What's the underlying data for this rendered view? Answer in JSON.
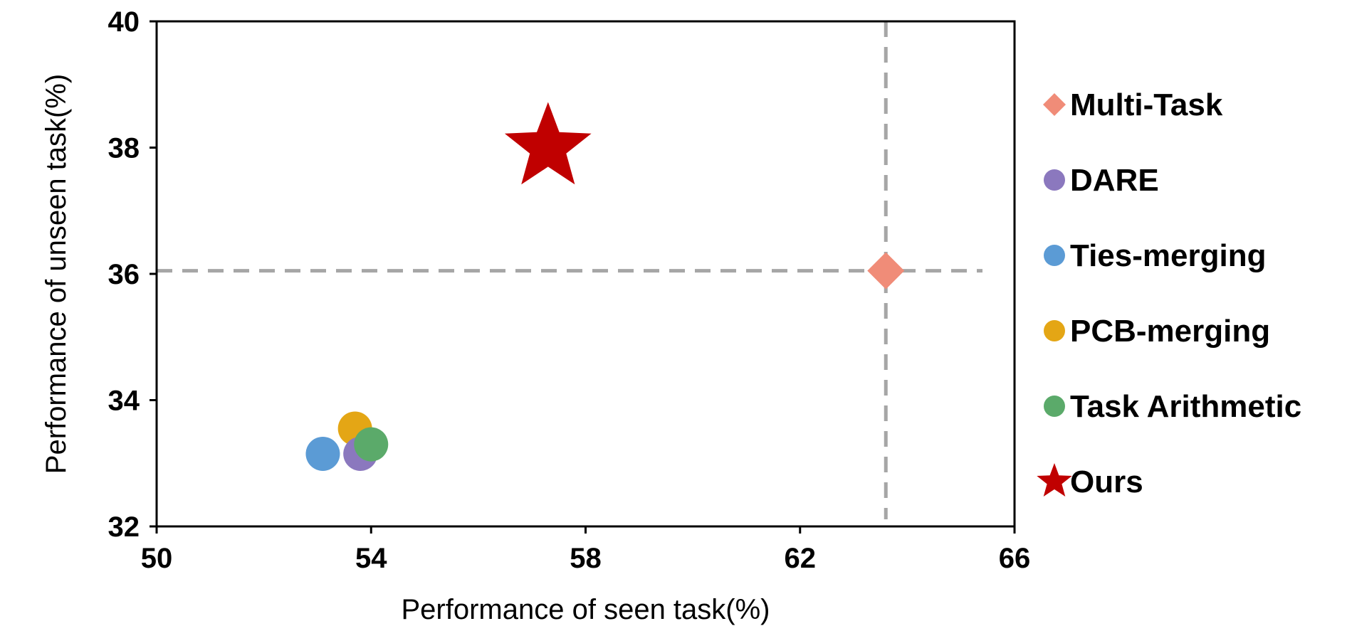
{
  "chart_data": {
    "type": "scatter",
    "title": "",
    "xlabel": "Performance of seen task(%)",
    "ylabel": "Performance of unseen task(%)",
    "xlim": [
      50,
      66
    ],
    "ylim": [
      32,
      40
    ],
    "xticks": [
      50,
      54,
      58,
      62,
      66
    ],
    "yticks": [
      32,
      34,
      36,
      38,
      40
    ],
    "grid": false,
    "legend_position": "right",
    "reference_lines": [
      {
        "orientation": "horizontal",
        "value": 36.05,
        "style": "dashed",
        "color": "#A6A6A6"
      },
      {
        "orientation": "vertical",
        "value": 63.6,
        "style": "dashed",
        "color": "#A6A6A6"
      }
    ],
    "series": [
      {
        "name": "Multi-Task",
        "marker": "diamond",
        "color": "#F08C78",
        "x": 63.6,
        "y": 36.05
      },
      {
        "name": "DARE",
        "marker": "circle",
        "color": "#8B78BE",
        "x": 53.8,
        "y": 33.15
      },
      {
        "name": "Ties-merging",
        "marker": "circle",
        "color": "#5B9BD5",
        "x": 53.1,
        "y": 33.15
      },
      {
        "name": "PCB-merging",
        "marker": "circle",
        "color": "#E4A615",
        "x": 53.7,
        "y": 33.55
      },
      {
        "name": "Task Arithmetic",
        "marker": "circle",
        "color": "#5BAA6A",
        "x": 54.0,
        "y": 33.3
      },
      {
        "name": "Ours",
        "marker": "star",
        "color": "#C00000",
        "x": 57.3,
        "y": 38.0
      }
    ]
  }
}
